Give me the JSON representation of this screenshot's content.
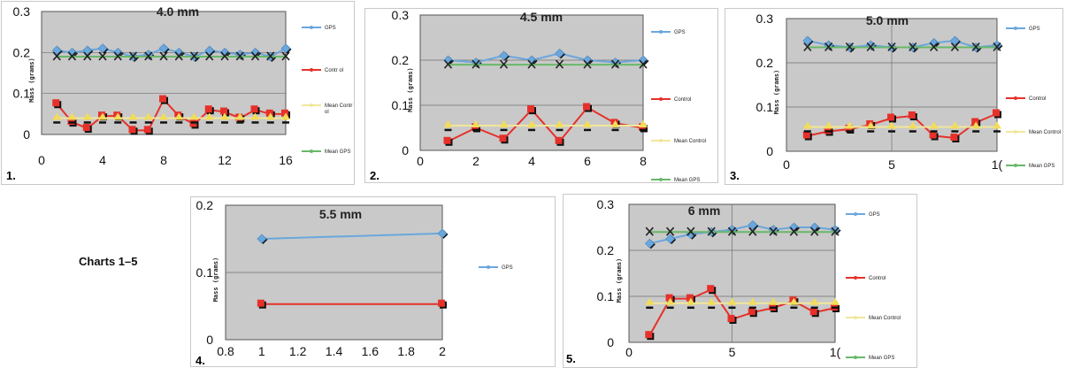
{
  "caption": "Charts 1–5",
  "colors": {
    "gps": "#6aa7dd",
    "control": "#e6312a",
    "mean_control": "#f1e79a",
    "mean_gps": "#69b869",
    "plot_bg": "#c9c9c9",
    "grid": "#707070"
  },
  "chart_data": [
    {
      "type": "line",
      "panel": "1.",
      "title": "4.0 mm",
      "ylabel": "Mass (grams)",
      "xlim": [
        0,
        16
      ],
      "ylim": [
        0,
        0.3
      ],
      "xticks": [
        "0",
        "4",
        "8",
        "12",
        "16"
      ],
      "yticks": [
        "0",
        "0.1",
        "0.2",
        "0.3"
      ],
      "legend": [
        "GPS",
        "Contr ol",
        "Mean Contr ol",
        "Mean GPS"
      ],
      "x": [
        1,
        2,
        3,
        4,
        5,
        6,
        7,
        8,
        9,
        10,
        11,
        12,
        13,
        14,
        15,
        16
      ],
      "series": [
        {
          "name": "GPS",
          "values": [
            0.205,
            0.2,
            0.205,
            0.21,
            0.2,
            0.19,
            0.195,
            0.21,
            0.2,
            0.19,
            0.205,
            0.2,
            0.195,
            0.2,
            0.19,
            0.21
          ]
        },
        {
          "name": "Control",
          "values": [
            0.075,
            0.03,
            0.015,
            0.045,
            0.045,
            0.01,
            0.01,
            0.085,
            0.045,
            0.025,
            0.06,
            0.055,
            0.04,
            0.06,
            0.05,
            0.05
          ]
        },
        {
          "name": "Mean Control",
          "values": [
            0.04,
            0.04,
            0.04,
            0.04,
            0.04,
            0.04,
            0.04,
            0.04,
            0.04,
            0.04,
            0.04,
            0.04,
            0.04,
            0.04,
            0.04,
            0.04
          ]
        },
        {
          "name": "Mean GPS",
          "values": [
            0.19,
            0.19,
            0.19,
            0.19,
            0.19,
            0.19,
            0.19,
            0.19,
            0.19,
            0.19,
            0.19,
            0.19,
            0.19,
            0.19,
            0.19,
            0.19
          ]
        }
      ]
    },
    {
      "type": "line",
      "panel": "2.",
      "title": "4.5 mm",
      "ylabel": "Mass (grams)",
      "xlim": [
        0,
        8
      ],
      "ylim": [
        0,
        0.3
      ],
      "xticks": [
        "0",
        "2",
        "4",
        "6",
        "8"
      ],
      "yticks": [
        "0",
        "0.1",
        "0.2",
        "0.3"
      ],
      "legend": [
        "GPS",
        "Control",
        "Mean Control",
        "Mean GPS"
      ],
      "x": [
        1,
        2,
        3,
        4,
        5,
        6,
        7,
        8
      ],
      "series": [
        {
          "name": "GPS",
          "values": [
            0.2,
            0.195,
            0.21,
            0.2,
            0.215,
            0.2,
            0.195,
            0.2
          ]
        },
        {
          "name": "Control",
          "values": [
            0.02,
            0.05,
            0.025,
            0.09,
            0.02,
            0.095,
            0.06,
            0.05
          ]
        },
        {
          "name": "Mean Control",
          "values": [
            0.055,
            0.055,
            0.055,
            0.055,
            0.055,
            0.055,
            0.055,
            0.055
          ]
        },
        {
          "name": "Mean GPS",
          "values": [
            0.19,
            0.19,
            0.19,
            0.19,
            0.19,
            0.19,
            0.19,
            0.19
          ]
        }
      ]
    },
    {
      "type": "line",
      "panel": "3.",
      "title": "5.0 mm",
      "ylabel": "Mass (grams)",
      "xlim": [
        0,
        10
      ],
      "ylim": [
        0,
        0.3
      ],
      "xticks": [
        "0",
        "5",
        "1("
      ],
      "yticks": [
        "0",
        "0.1",
        "0.2",
        "0.3"
      ],
      "legend": [
        "GPS",
        "Control",
        "Mean Control",
        "Mean GPS"
      ],
      "x": [
        1,
        2,
        3,
        4,
        5,
        6,
        7,
        8,
        9,
        10
      ],
      "series": [
        {
          "name": "GPS",
          "values": [
            0.25,
            0.24,
            0.235,
            0.24,
            0.235,
            0.235,
            0.245,
            0.25,
            0.235,
            0.24
          ]
        },
        {
          "name": "Control",
          "values": [
            0.035,
            0.045,
            0.05,
            0.06,
            0.075,
            0.08,
            0.035,
            0.03,
            0.065,
            0.085
          ]
        },
        {
          "name": "Mean Control",
          "values": [
            0.055,
            0.055,
            0.055,
            0.055,
            0.055,
            0.055,
            0.055,
            0.055,
            0.055,
            0.055
          ]
        },
        {
          "name": "Mean GPS",
          "values": [
            0.235,
            0.235,
            0.235,
            0.235,
            0.235,
            0.235,
            0.235,
            0.235,
            0.235,
            0.235
          ]
        }
      ]
    },
    {
      "type": "line",
      "panel": "4.",
      "title": "5.5 mm",
      "ylabel": "Mass (grams)",
      "xlim": [
        0.8,
        2
      ],
      "ylim": [
        0,
        0.2
      ],
      "xticks": [
        "0.8",
        "1",
        "1.2",
        "1.4",
        "1.6",
        "1.8",
        "2"
      ],
      "yticks": [
        "0",
        "0.1",
        "0.2"
      ],
      "legend": [
        "GPS"
      ],
      "x": [
        1,
        2
      ],
      "series": [
        {
          "name": "GPS",
          "values": [
            0.15,
            0.158
          ]
        },
        {
          "name": "Control",
          "values": [
            0.053,
            0.053
          ]
        }
      ]
    },
    {
      "type": "line",
      "panel": "5.",
      "title": "6 mm",
      "ylabel": "Mass (grams)",
      "xlim": [
        0,
        10
      ],
      "ylim": [
        0,
        0.3
      ],
      "xticks": [
        "0",
        "5",
        "1("
      ],
      "yticks": [
        "0",
        "0.1",
        "0.2",
        "0.3"
      ],
      "legend": [
        "GPS",
        "Control",
        "Mean Control",
        "Mean GPS"
      ],
      "x": [
        1,
        2,
        3,
        4,
        5,
        6,
        7,
        8,
        9,
        10
      ],
      "series": [
        {
          "name": "GPS",
          "values": [
            0.215,
            0.225,
            0.235,
            0.24,
            0.245,
            0.255,
            0.245,
            0.25,
            0.25,
            0.245
          ]
        },
        {
          "name": "Control",
          "values": [
            0.015,
            0.095,
            0.095,
            0.115,
            0.05,
            0.065,
            0.075,
            0.09,
            0.065,
            0.075
          ]
        },
        {
          "name": "Mean Control",
          "values": [
            0.085,
            0.085,
            0.085,
            0.085,
            0.085,
            0.085,
            0.085,
            0.085,
            0.085,
            0.085
          ]
        },
        {
          "name": "Mean GPS",
          "values": [
            0.24,
            0.24,
            0.24,
            0.24,
            0.24,
            0.24,
            0.24,
            0.24,
            0.24,
            0.24
          ]
        }
      ]
    }
  ]
}
